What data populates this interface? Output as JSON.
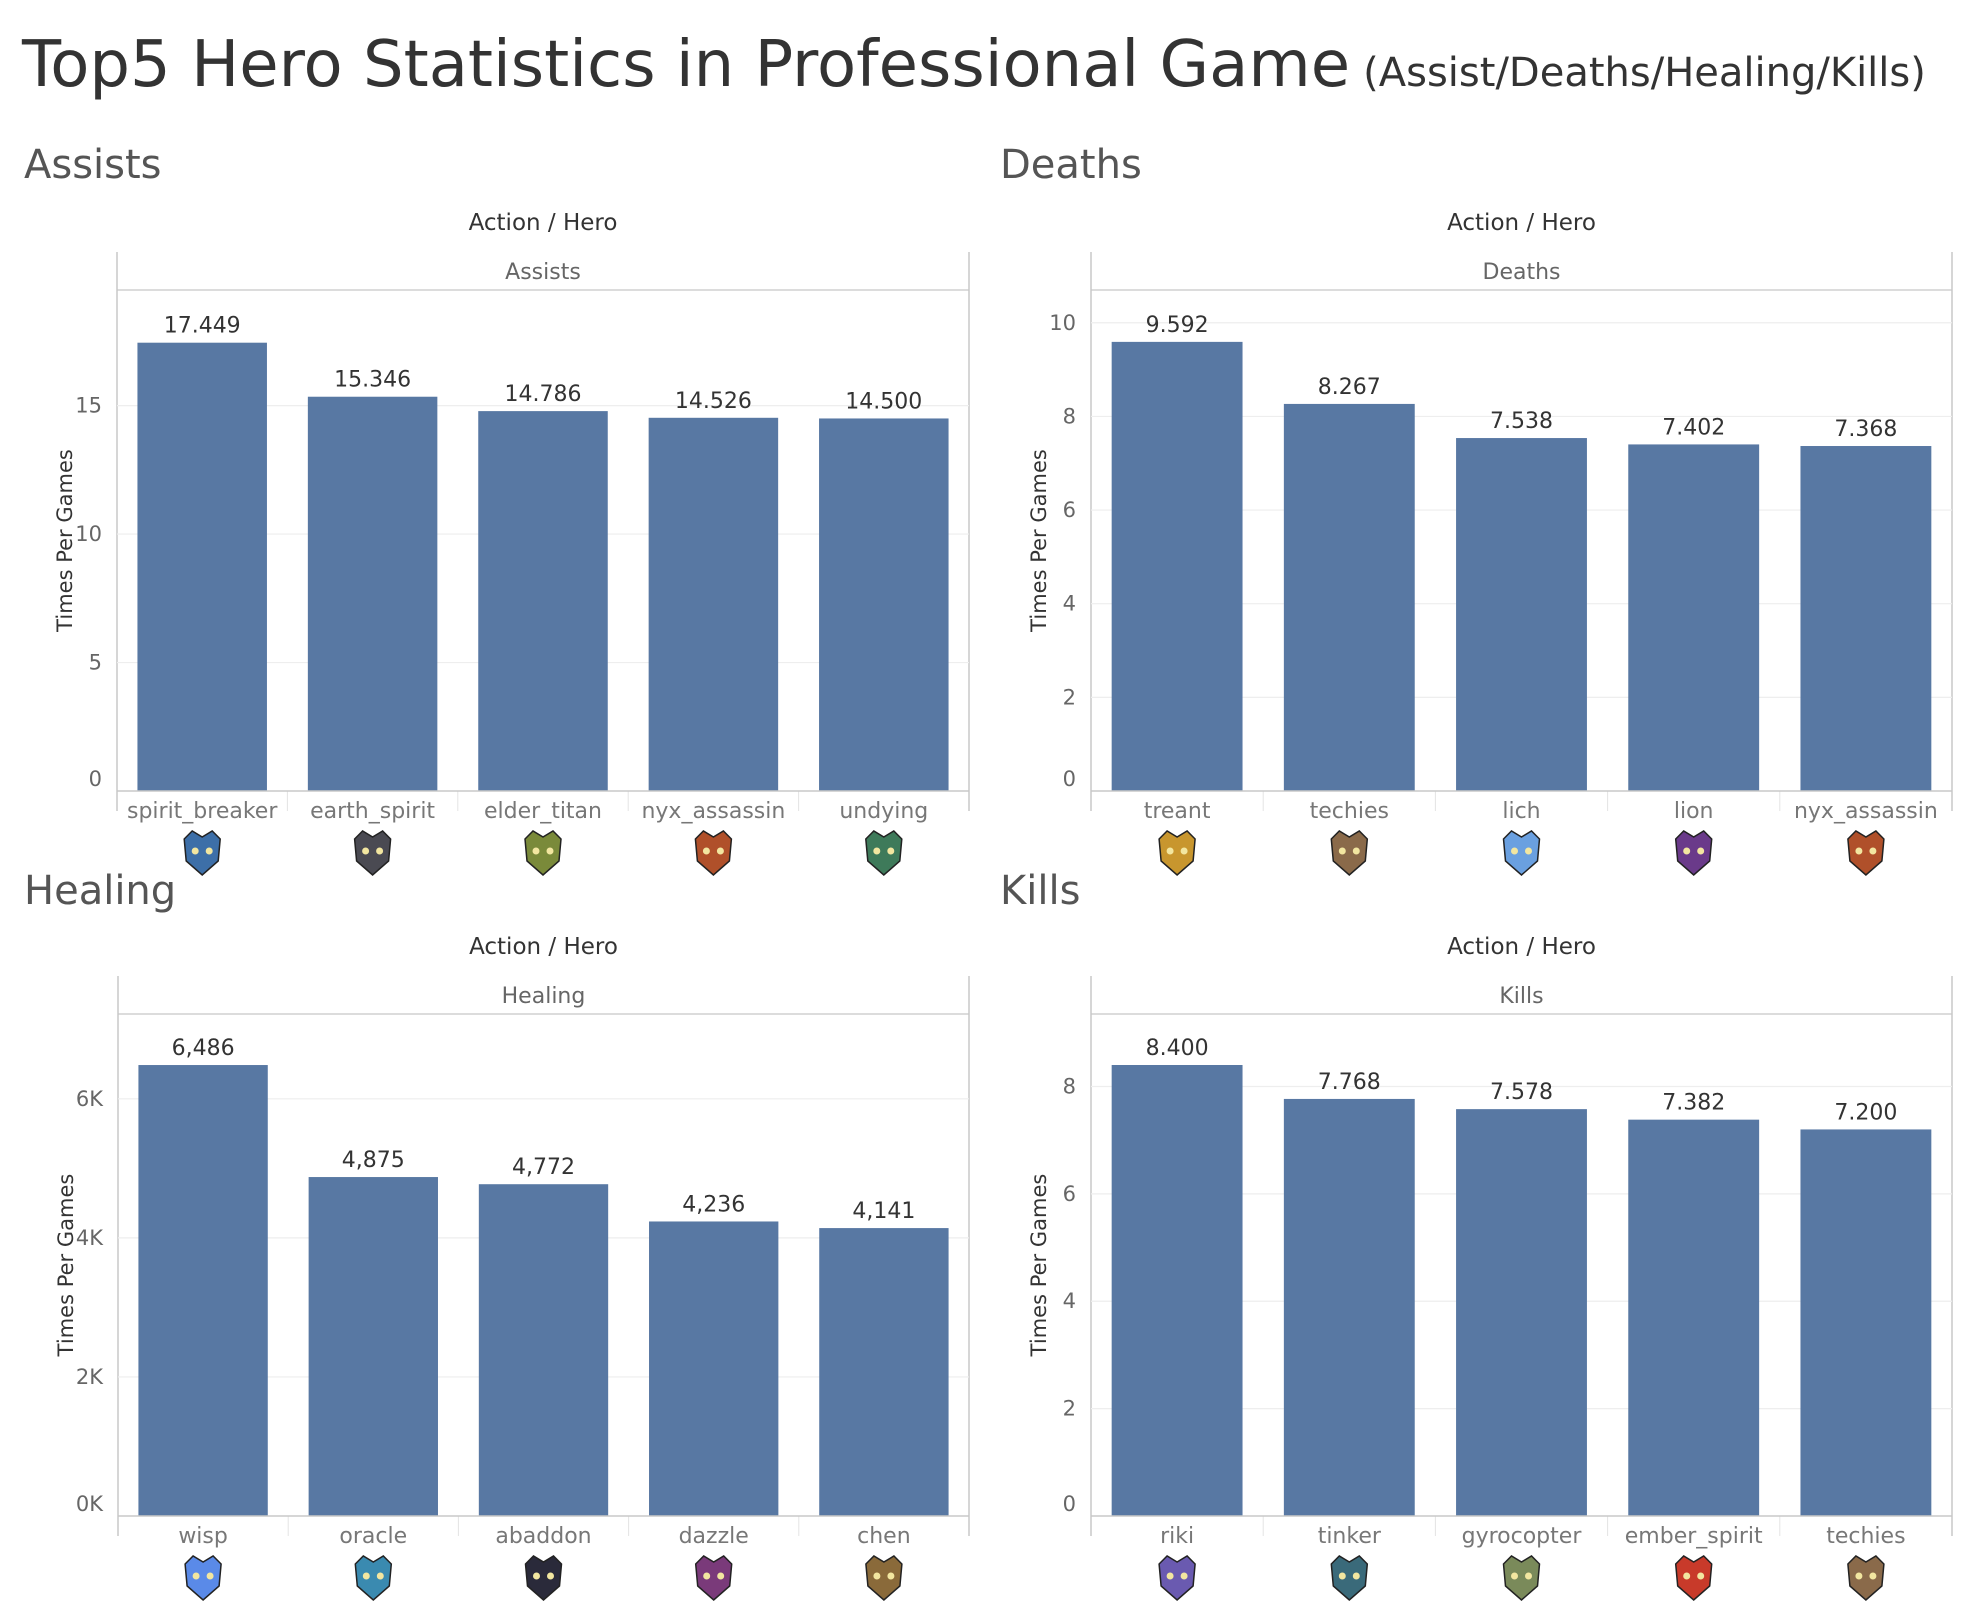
{
  "title": "Top5 Hero Statistics in Professional Game",
  "subtitle": "(Assist/Deaths/Healing/Kills)",
  "colors": {
    "bar": "#5878A3",
    "grid": "#eeeeee",
    "axis": "#c8c8c8"
  },
  "chart_data": [
    {
      "panel_title": "Assists",
      "type": "bar",
      "header": "Action / Hero",
      "facet": "Assists",
      "ylabel": "Times Per Games",
      "categories": [
        "spirit_breaker",
        "earth_spirit",
        "elder_titan",
        "nyx_assassin",
        "undying"
      ],
      "values": [
        17.449,
        15.346,
        14.786,
        14.526,
        14.5
      ],
      "value_labels": [
        "17.449",
        "15.346",
        "14.786",
        "14.526",
        "14.500"
      ],
      "yticks": [
        0,
        5,
        10,
        15
      ],
      "ytick_labels": [
        "0",
        "5",
        "10",
        "15"
      ],
      "ylim": [
        0,
        19.5
      ],
      "icons": [
        "spirit-breaker-icon",
        "earth-spirit-icon",
        "elder-titan-icon",
        "nyx-assassin-icon",
        "undying-icon"
      ],
      "icon_colors": [
        "#3d6fa8",
        "#4a4a52",
        "#7a8a3a",
        "#b0502a",
        "#3e7a5a"
      ]
    },
    {
      "panel_title": "Deaths",
      "type": "bar",
      "header": "Action / Hero",
      "facet": "Deaths",
      "ylabel": "Times Per Games",
      "categories": [
        "treant",
        "techies",
        "lich",
        "lion",
        "nyx_assassin"
      ],
      "values": [
        9.592,
        8.267,
        7.538,
        7.402,
        7.368
      ],
      "value_labels": [
        "9.592",
        "8.267",
        "7.538",
        "7.402",
        "7.368"
      ],
      "yticks": [
        0,
        2,
        4,
        6,
        8,
        10
      ],
      "ytick_labels": [
        "0",
        "2",
        "4",
        "6",
        "8",
        "10"
      ],
      "ylim": [
        0,
        10.7
      ],
      "icons": [
        "treant-icon",
        "techies-icon",
        "lich-icon",
        "lion-icon",
        "nyx-assassin-icon"
      ],
      "icon_colors": [
        "#c8962e",
        "#8a6a4a",
        "#6aa0e0",
        "#6a3a8a",
        "#b0502a"
      ]
    },
    {
      "panel_title": "Healing",
      "type": "bar",
      "header": "Action / Hero",
      "facet": "Healing",
      "ylabel": "Times Per Games",
      "categories": [
        "wisp",
        "oracle",
        "abaddon",
        "dazzle",
        "chen"
      ],
      "values": [
        6486,
        4875,
        4772,
        4236,
        4141
      ],
      "value_labels": [
        "6,486",
        "4,875",
        "4,772",
        "4,236",
        "4,141"
      ],
      "yticks": [
        0,
        2000,
        4000,
        6000
      ],
      "ytick_labels": [
        "0K",
        "2K",
        "4K",
        "6K"
      ],
      "ylim": [
        0,
        7220
      ],
      "icons": [
        "wisp-icon",
        "oracle-icon",
        "abaddon-icon",
        "dazzle-icon",
        "chen-icon"
      ],
      "icon_colors": [
        "#5a8ae8",
        "#3a8ab0",
        "#2a2a3a",
        "#7a3a7a",
        "#8a6a3a"
      ]
    },
    {
      "panel_title": "Kills",
      "type": "bar",
      "header": "Action / Hero",
      "facet": "Kills",
      "ylabel": "Times Per Games",
      "categories": [
        "riki",
        "tinker",
        "gyrocopter",
        "ember_spirit",
        "techies"
      ],
      "values": [
        8.4,
        7.768,
        7.578,
        7.382,
        7.2
      ],
      "value_labels": [
        "8.400",
        "7.768",
        "7.578",
        "7.382",
        "7.200"
      ],
      "yticks": [
        0,
        2,
        4,
        6,
        8
      ],
      "ytick_labels": [
        "0",
        "2",
        "4",
        "6",
        "8"
      ],
      "ylim": [
        0,
        9.35
      ],
      "icons": [
        "riki-icon",
        "tinker-icon",
        "gyrocopter-icon",
        "ember-spirit-icon",
        "techies-icon"
      ],
      "icon_colors": [
        "#6a5ab0",
        "#3a6a7a",
        "#7a8a5a",
        "#c83a2a",
        "#8a6a4a"
      ]
    }
  ]
}
